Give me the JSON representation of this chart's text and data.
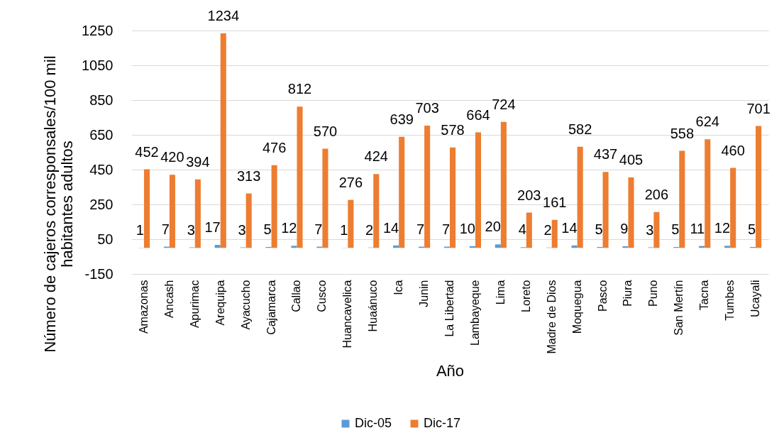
{
  "chart_data": {
    "type": "bar",
    "xlabel": "Año",
    "ylabel": "Número de cajeros corresponsales/100 mil habitantes adultos",
    "categories": [
      "Amazonas",
      "Ancash",
      "Apurimac",
      "Arequipa",
      "Ayacucho",
      "Cajamarca",
      "Callao",
      "Cusco",
      "Huancavelica",
      "Huaánuco",
      "Ica",
      "Junin",
      "La Libertad",
      "Lambayeque",
      "Lima",
      "Loreto",
      "Madre de Dios",
      "Moquegua",
      "Pasco",
      "Piura",
      "Puno",
      "San Mertín",
      "Tacna",
      "Tumbes",
      "Ucayali"
    ],
    "series": [
      {
        "name": "Dic-05",
        "color": "#5b9bd5",
        "values": [
          1,
          7,
          3,
          17,
          3,
          5,
          12,
          7,
          1,
          2,
          14,
          7,
          7,
          10,
          20,
          4,
          2,
          14,
          5,
          9,
          3,
          5,
          11,
          12,
          5
        ]
      },
      {
        "name": "Dic-17",
        "color": "#ed7d31",
        "values": [
          452,
          420,
          394,
          1234,
          313,
          476,
          812,
          570,
          276,
          424,
          639,
          703,
          578,
          664,
          724,
          203,
          161,
          582,
          437,
          405,
          206,
          558,
          624,
          460,
          701
        ]
      }
    ],
    "ylim": [
      -150,
      1250
    ],
    "yticks": [
      -150,
      50,
      250,
      450,
      650,
      850,
      1050,
      1250
    ],
    "grid": "y",
    "legend": "bottom",
    "data_labels": true
  }
}
